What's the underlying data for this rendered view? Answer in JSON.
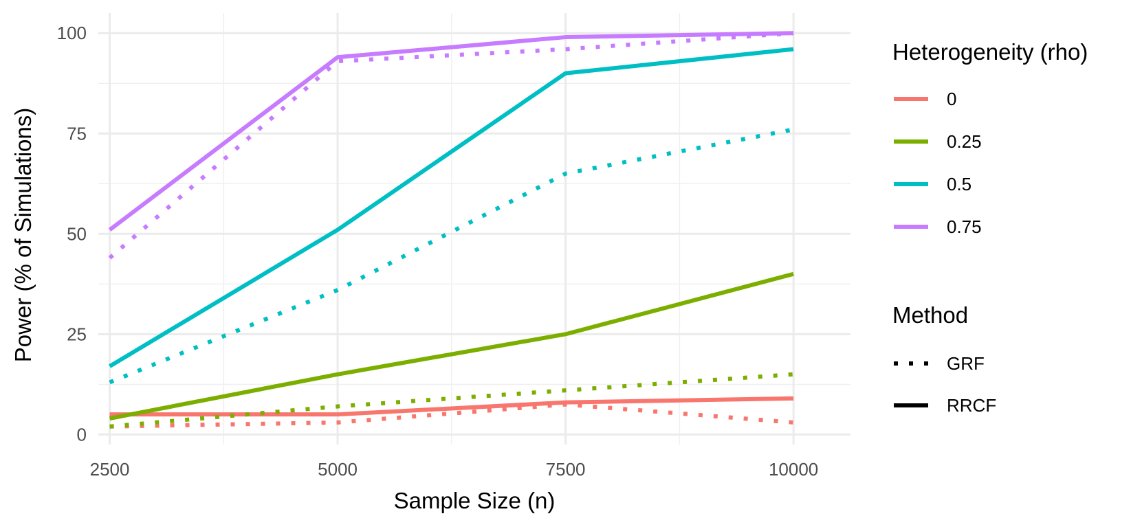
{
  "chart_data": {
    "type": "line",
    "title": "",
    "xlabel": "Sample Size (n)",
    "ylabel": "Power (% of Simulations)",
    "x": [
      2500,
      5000,
      7500,
      10000
    ],
    "x_ticks": [
      2500,
      5000,
      7500,
      10000
    ],
    "x_tick_labels": [
      "2500",
      "5000",
      "7500",
      "10000"
    ],
    "y_ticks": [
      0,
      25,
      50,
      75,
      100
    ],
    "y_tick_labels": [
      "0",
      "25",
      "50",
      "75",
      "100"
    ],
    "xlim": [
      2375,
      10625
    ],
    "ylim": [
      -2.5,
      105
    ],
    "grid": true,
    "legend_position": "right",
    "legend": {
      "color_title": "Heterogeneity (rho)",
      "linetype_title": "Method",
      "colors": [
        {
          "label": "0",
          "color": "#F8766D"
        },
        {
          "label": "0.25",
          "color": "#7CAE00"
        },
        {
          "label": "0.5",
          "color": "#00BFC4"
        },
        {
          "label": "0.75",
          "color": "#C77CFF"
        }
      ],
      "linetypes": [
        {
          "label": "GRF",
          "style": "dotted"
        },
        {
          "label": "RRCF",
          "style": "solid"
        }
      ]
    },
    "series": [
      {
        "name": "RRCF rho=0",
        "rho": "0",
        "method": "RRCF",
        "color": "#F8766D",
        "values": [
          5,
          5,
          8,
          9
        ]
      },
      {
        "name": "GRF rho=0",
        "rho": "0",
        "method": "GRF",
        "color": "#F8766D",
        "values": [
          2,
          3,
          7.5,
          3
        ]
      },
      {
        "name": "RRCF rho=0.25",
        "rho": "0.25",
        "method": "RRCF",
        "color": "#7CAE00",
        "values": [
          4,
          15,
          25,
          40
        ]
      },
      {
        "name": "GRF rho=0.25",
        "rho": "0.25",
        "method": "GRF",
        "color": "#7CAE00",
        "values": [
          2,
          7,
          11,
          15
        ]
      },
      {
        "name": "RRCF rho=0.5",
        "rho": "0.5",
        "method": "RRCF",
        "color": "#00BFC4",
        "values": [
          17,
          51,
          90,
          96
        ]
      },
      {
        "name": "GRF rho=0.5",
        "rho": "0.5",
        "method": "GRF",
        "color": "#00BFC4",
        "values": [
          13,
          36,
          65,
          76
        ]
      },
      {
        "name": "RRCF rho=0.75",
        "rho": "0.75",
        "method": "RRCF",
        "color": "#C77CFF",
        "values": [
          51,
          94,
          99,
          100
        ]
      },
      {
        "name": "GRF rho=0.75",
        "rho": "0.75",
        "method": "GRF",
        "color": "#C77CFF",
        "values": [
          44,
          93,
          96,
          100
        ]
      }
    ]
  }
}
